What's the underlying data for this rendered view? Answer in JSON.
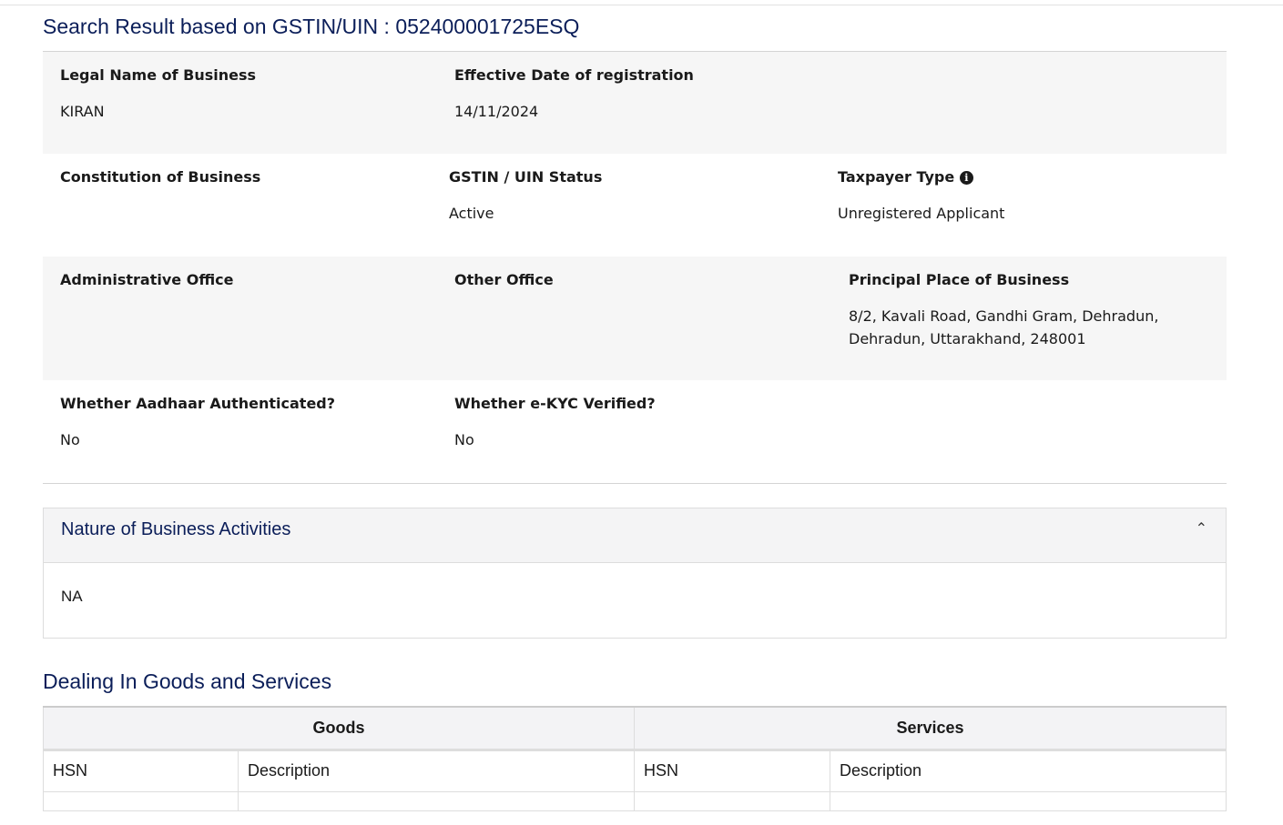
{
  "title": "Search Result based on GSTIN/UIN : 052400001725ESQ",
  "rows": [
    [
      {
        "label": "Legal Name of Business",
        "value": "KIRAN"
      },
      {
        "label": "Effective Date of registration",
        "value": "14/11/2024"
      },
      {
        "label": "",
        "value": ""
      }
    ],
    [
      {
        "label": "Constitution of Business",
        "value": ""
      },
      {
        "label": "GSTIN / UIN Status",
        "value": "Active"
      },
      {
        "label": "Taxpayer Type",
        "value": "Unregistered Applicant",
        "icon": "info-icon"
      }
    ],
    [
      {
        "label": "Administrative Office",
        "value": ""
      },
      {
        "label": "Other Office",
        "value": ""
      },
      {
        "label": "Principal Place of Business",
        "value": "8/2, Kavali Road, Gandhi Gram, Dehradun, Dehradun, Uttarakhand, 248001"
      }
    ],
    [
      {
        "label": "Whether Aadhaar Authenticated?",
        "value": "No"
      },
      {
        "label": "Whether e-KYC Verified?",
        "value": "No"
      },
      {
        "label": "",
        "value": ""
      }
    ]
  ],
  "nature": {
    "title": "Nature of Business Activities",
    "value": "NA",
    "icon": "chevron-up-icon"
  },
  "dealing": {
    "title": "Dealing In Goods and Services",
    "goods": "Goods",
    "services": "Services",
    "hsn": "HSN",
    "description": "Description"
  }
}
